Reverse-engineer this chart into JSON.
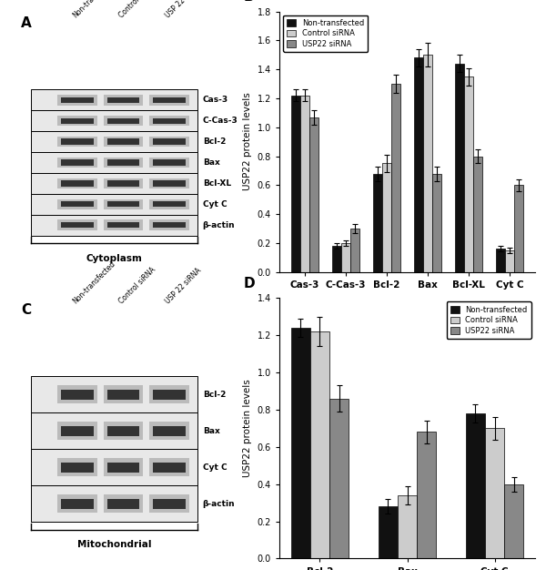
{
  "panel_B": {
    "categories": [
      "Cas-3",
      "C-Cas-3",
      "Bcl-2",
      "Bax",
      "Bcl-XL",
      "Cyt C"
    ],
    "non_transfected": [
      1.22,
      0.18,
      0.68,
      1.48,
      1.44,
      0.16
    ],
    "control_siRNA": [
      1.22,
      0.2,
      0.75,
      1.5,
      1.35,
      0.15
    ],
    "USP22_siRNA": [
      1.07,
      0.3,
      1.3,
      0.68,
      0.8,
      0.6
    ],
    "err_non": [
      0.04,
      0.02,
      0.05,
      0.06,
      0.06,
      0.02
    ],
    "err_ctrl": [
      0.04,
      0.02,
      0.06,
      0.08,
      0.06,
      0.02
    ],
    "err_usp": [
      0.05,
      0.03,
      0.06,
      0.05,
      0.05,
      0.04
    ],
    "ylabel": "USP22 protein levels",
    "ylim": [
      0.0,
      1.8
    ],
    "yticks": [
      0.0,
      0.2,
      0.4,
      0.6,
      0.8,
      1.0,
      1.2,
      1.4,
      1.6,
      1.8
    ],
    "label": "B"
  },
  "panel_D": {
    "categories": [
      "Bcl-2",
      "Bax",
      "Cyt C"
    ],
    "non_transfected": [
      1.24,
      0.28,
      0.78
    ],
    "control_siRNA": [
      1.22,
      0.34,
      0.7
    ],
    "USP22_siRNA": [
      0.86,
      0.68,
      0.4
    ],
    "err_non": [
      0.05,
      0.04,
      0.05
    ],
    "err_ctrl": [
      0.08,
      0.05,
      0.06
    ],
    "err_usp": [
      0.07,
      0.06,
      0.04
    ],
    "ylabel": "USP22 protein levels",
    "ylim": [
      0.0,
      1.4
    ],
    "yticks": [
      0.0,
      0.2,
      0.4,
      0.6,
      0.8,
      1.0,
      1.2,
      1.4
    ],
    "label": "D"
  },
  "colors": {
    "non_transfected": "#111111",
    "control_siRNA": "#cccccc",
    "USP22_siRNA": "#888888"
  },
  "legend_labels": [
    "Non-transfected",
    "Control siRNA",
    "USP22 siRNA"
  ],
  "bar_width": 0.22,
  "panel_A_label": "A",
  "panel_C_label": "C",
  "cytoplasm_label": "Cytoplasm",
  "mitochondrial_label": "Mitochondrial",
  "western_labels_A": [
    "Cas-3",
    "C-Cas-3",
    "Bcl-2",
    "Bax",
    "Bcl-XL",
    "Cyt C",
    "β-actin"
  ],
  "western_labels_C": [
    "Bcl-2",
    "Bax",
    "Cyt C",
    "β-actin"
  ],
  "col_labels": [
    "Non-transfected",
    "Control siRNA",
    "USP 22 siRNA"
  ]
}
